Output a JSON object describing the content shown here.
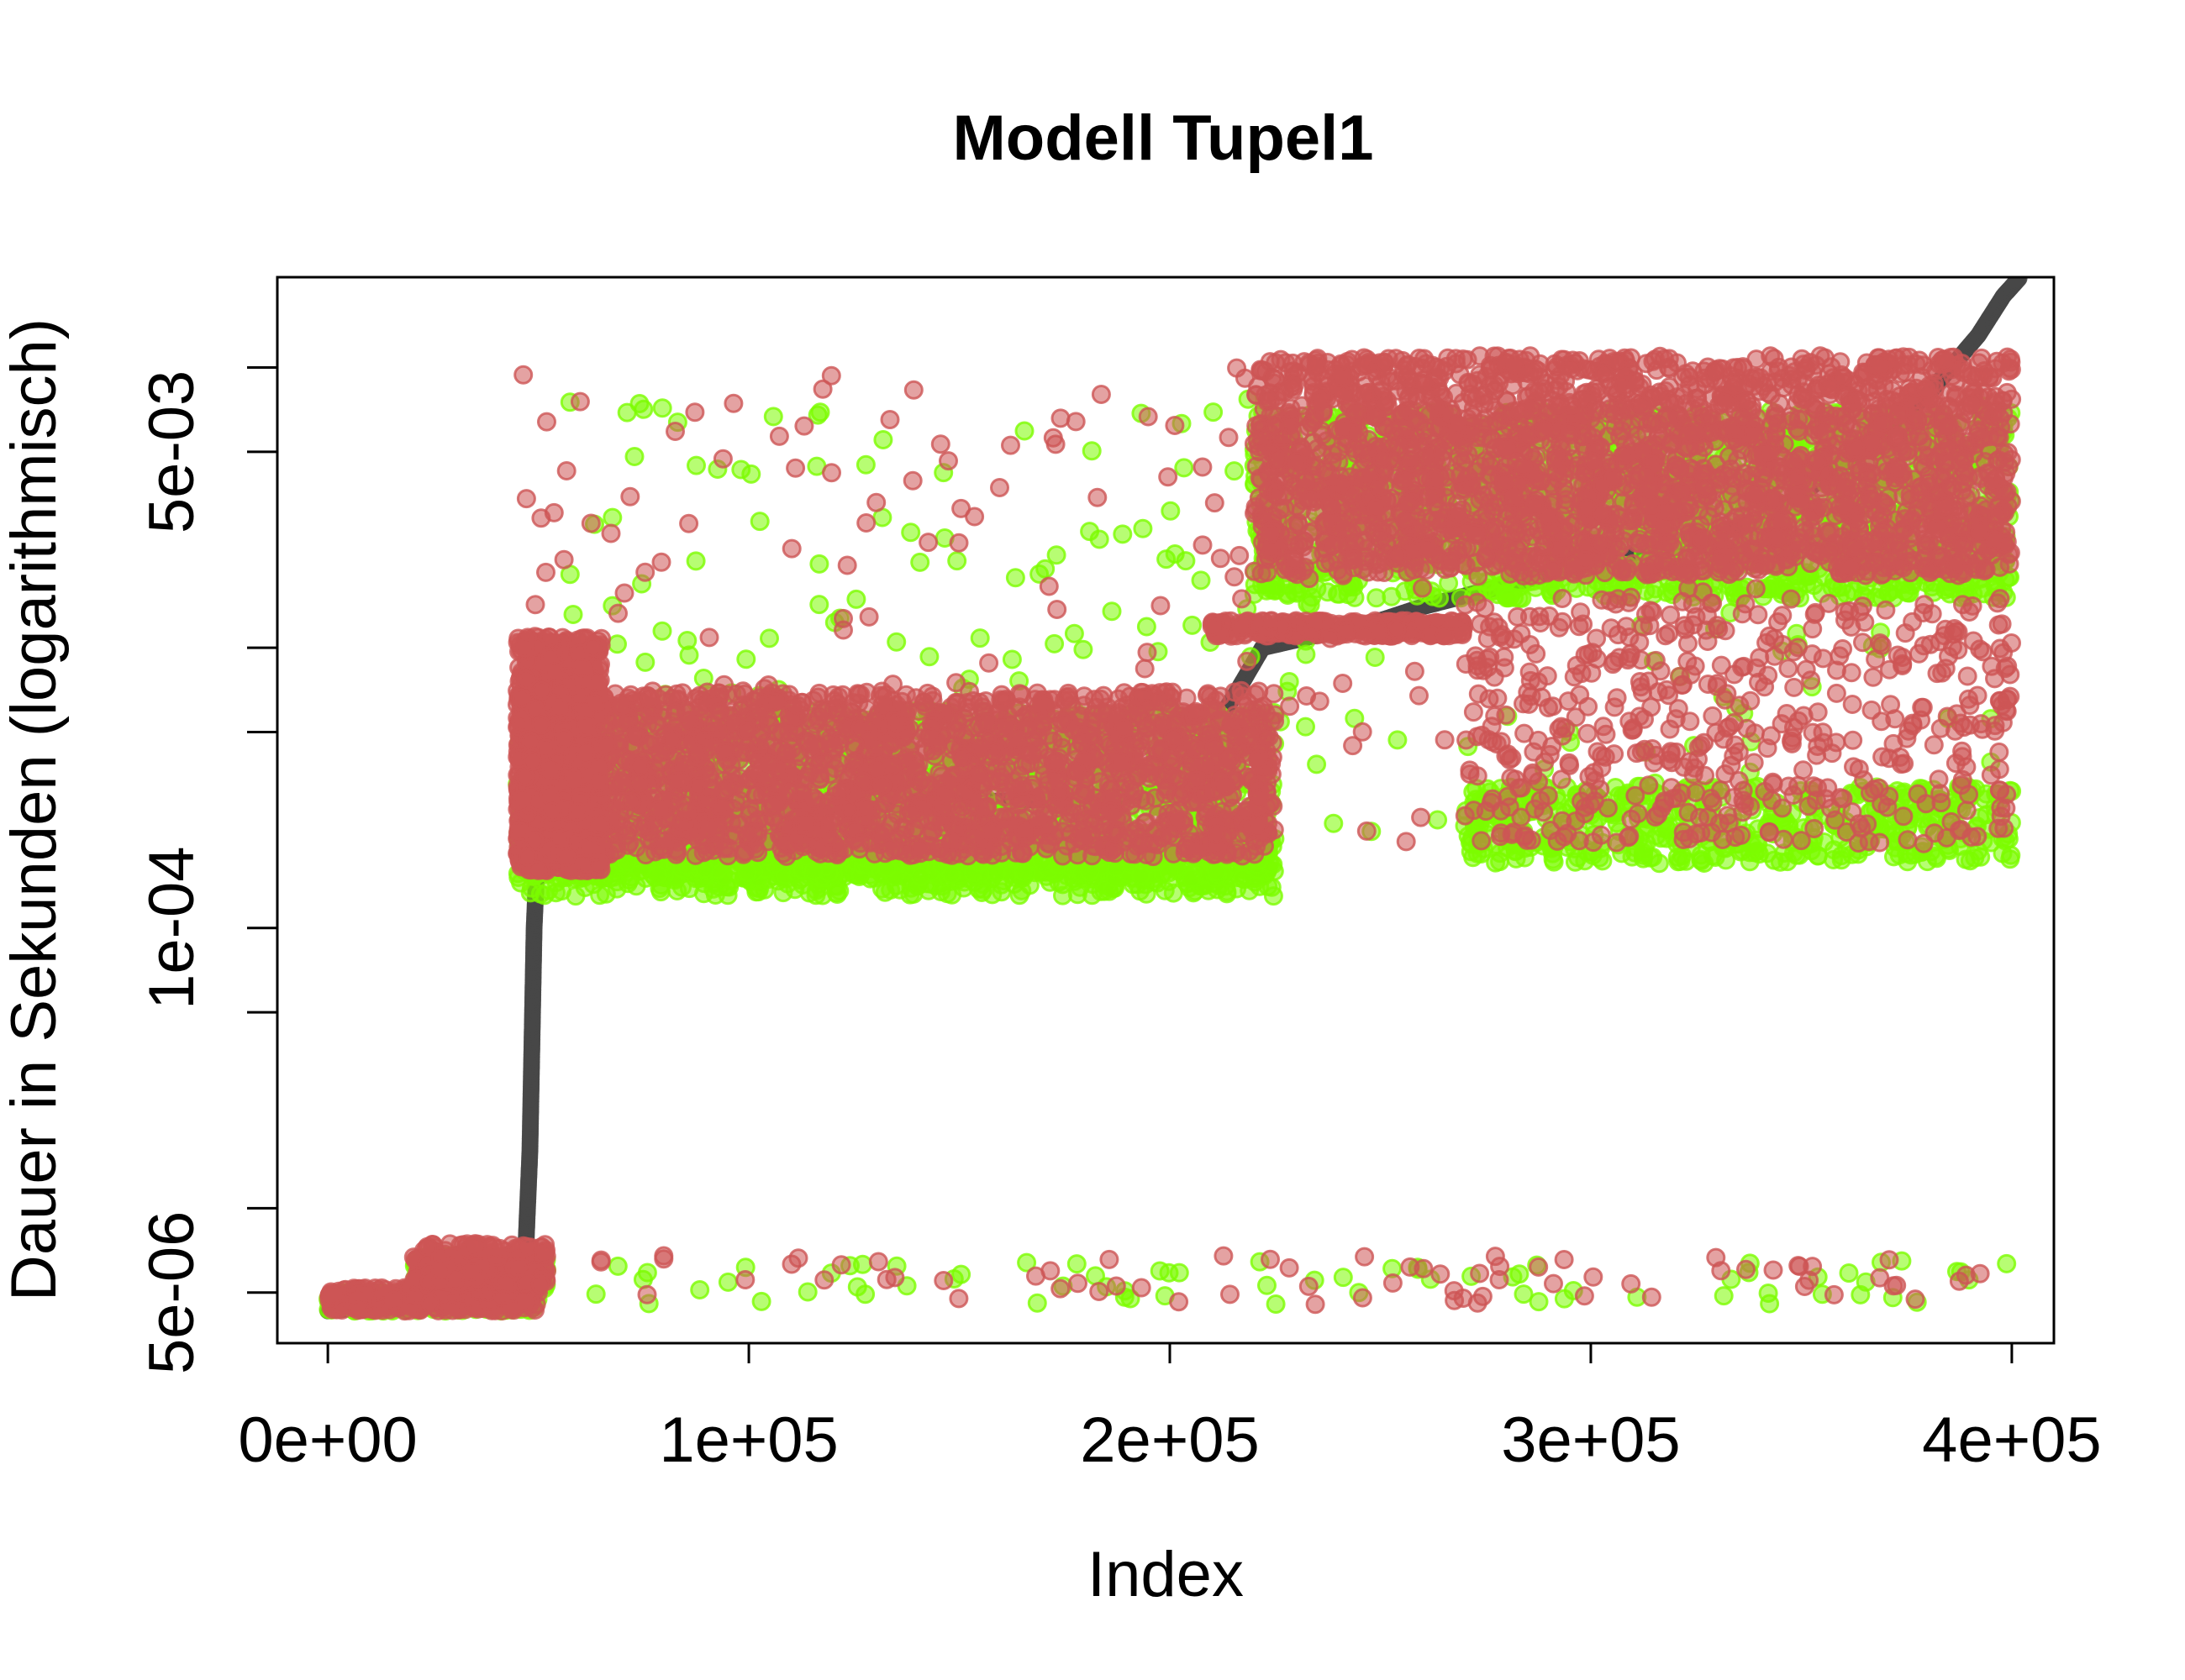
{
  "chart_data": {
    "type": "scatter",
    "title": "Modell Tupel1",
    "xlabel": "Index",
    "ylabel": "Dauer in Sekunden (logarithmisch)",
    "x_range": [
      -12000,
      410000
    ],
    "y_range": [
      3.3e-06,
      0.021
    ],
    "y_scale": "log",
    "x_ticks": [
      {
        "value": 0,
        "label": "0e+00"
      },
      {
        "value": 100000,
        "label": "1e+05"
      },
      {
        "value": 200000,
        "label": "2e+05"
      },
      {
        "value": 300000,
        "label": "3e+05"
      },
      {
        "value": 400000,
        "label": "4e+05"
      }
    ],
    "y_ticks": [
      {
        "value": 5e-06,
        "label": "5e-06"
      },
      {
        "value": 1e-05,
        "label": ""
      },
      {
        "value": 5e-05,
        "label": ""
      },
      {
        "value": 0.0001,
        "label": "1e-04"
      },
      {
        "value": 0.0005,
        "label": ""
      },
      {
        "value": 0.001,
        "label": ""
      },
      {
        "value": 0.005,
        "label": "5e-03"
      },
      {
        "value": 0.01,
        "label": ""
      }
    ],
    "grid": false,
    "legend": "none",
    "colors": {
      "measured": "#474747",
      "green": "#7cfc00",
      "red": "#cd5555"
    },
    "series": [
      {
        "color_key": "measured",
        "style": "sorted-curve",
        "x": [
          0,
          20000,
          40000,
          47000,
          48000,
          48500,
          49000,
          50000,
          52000,
          60000,
          100000,
          150000,
          200000,
          208000,
          216000,
          222000,
          250000,
          260000,
          300000,
          340000,
          360000,
          380000,
          392000,
          398000,
          402000
        ],
        "y": [
          4.3e-06,
          4.6e-06,
          5e-06,
          7e-06,
          1.6e-05,
          4e-05,
          0.0001,
          0.00022,
          0.00025,
          0.00026,
          0.00027,
          0.00028,
          0.0003,
          0.00045,
          0.0007,
          0.001,
          0.00125,
          0.0014,
          0.002,
          0.0028,
          0.0045,
          0.008,
          0.013,
          0.018,
          0.021
        ]
      },
      {
        "color_key": "green",
        "style": "points",
        "clusters": [
          {
            "x0": 0,
            "x1": 50000,
            "ymin": 4.3e-06,
            "ymax": 5e-06,
            "n": 300
          },
          {
            "x0": 20000,
            "x1": 52000,
            "ymin": 5e-06,
            "ymax": 6.8e-06,
            "n": 250
          },
          {
            "x0": 45000,
            "x1": 225000,
            "ymin": 0.00013,
            "ymax": 0.0006,
            "n": 1700
          },
          {
            "x0": 45000,
            "x1": 225000,
            "ymin": 0.00015,
            "ymax": 0.00022,
            "n": 1000
          },
          {
            "x0": 220000,
            "x1": 400000,
            "ymin": 0.0015,
            "ymax": 0.007,
            "n": 1600
          },
          {
            "x0": 270000,
            "x1": 400000,
            "ymin": 0.00017,
            "ymax": 0.00032,
            "n": 500
          },
          {
            "x0": 45000,
            "x1": 400000,
            "ymin": 0.0002,
            "ymax": 0.008,
            "n": 250
          },
          {
            "x0": 60000,
            "x1": 400000,
            "ymin": 4.5e-06,
            "ymax": 6.5e-06,
            "n": 70
          }
        ]
      },
      {
        "color_key": "red",
        "style": "points",
        "clusters": [
          {
            "x0": 0,
            "x1": 50000,
            "ymin": 4.3e-06,
            "ymax": 5.2e-06,
            "n": 350
          },
          {
            "x0": 20000,
            "x1": 52000,
            "ymin": 5.3e-06,
            "ymax": 7.5e-06,
            "n": 250
          },
          {
            "x0": 45000,
            "x1": 225000,
            "ymin": 0.00018,
            "ymax": 0.0007,
            "n": 2200
          },
          {
            "x0": 45000,
            "x1": 65000,
            "ymin": 0.00016,
            "ymax": 0.0011,
            "n": 1200
          },
          {
            "x0": 210000,
            "x1": 270000,
            "ymin": 0.0011,
            "ymax": 0.00125,
            "n": 300
          },
          {
            "x0": 220000,
            "x1": 400000,
            "ymin": 0.0018,
            "ymax": 0.011,
            "n": 2600
          },
          {
            "x0": 270000,
            "x1": 400000,
            "ymin": 0.0002,
            "ymax": 0.0015,
            "n": 500
          },
          {
            "x0": 45000,
            "x1": 400000,
            "ymin": 0.0002,
            "ymax": 0.01,
            "n": 250
          },
          {
            "x0": 60000,
            "x1": 400000,
            "ymin": 4.5e-06,
            "ymax": 6.8e-06,
            "n": 70
          }
        ]
      }
    ]
  }
}
